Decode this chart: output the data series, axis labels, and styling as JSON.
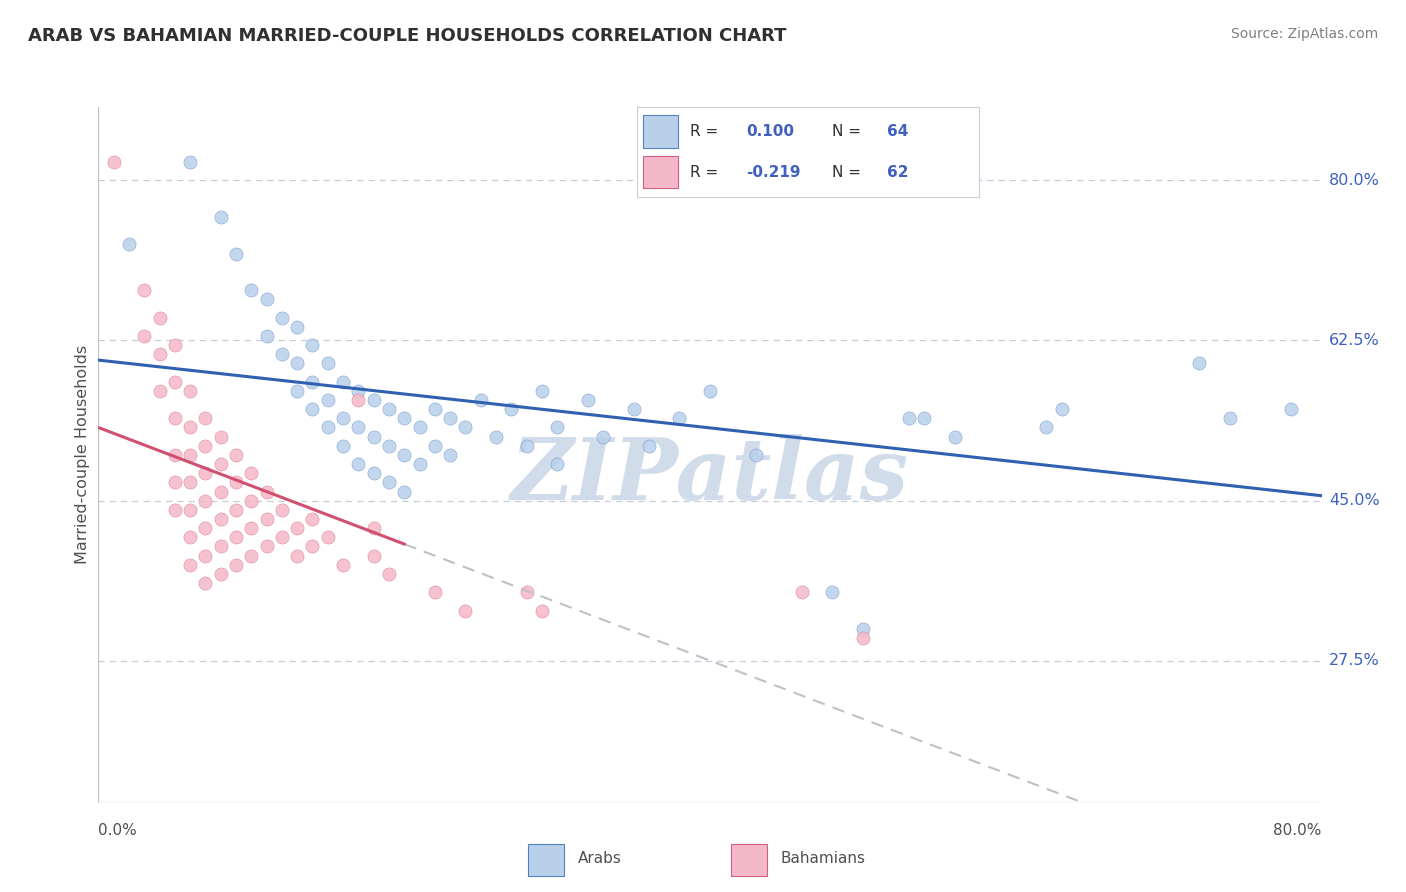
{
  "title": "ARAB VS BAHAMIAN MARRIED-COUPLE HOUSEHOLDS CORRELATION CHART",
  "source": "Source: ZipAtlas.com",
  "ylabel": "Married-couple Households",
  "xlim": [
    0.0,
    0.8
  ],
  "ylim": [
    0.12,
    0.88
  ],
  "yticks": [
    0.275,
    0.45,
    0.625,
    0.8
  ],
  "ytick_labels": [
    "27.5%",
    "45.0%",
    "62.5%",
    "80.0%"
  ],
  "legend_r_arab": "0.100",
  "legend_n_arab": "64",
  "legend_r_bah": "-0.219",
  "legend_n_bah": "62",
  "arab_color": "#b8d0ea",
  "bah_color": "#f5b8c8",
  "arab_edge_color": "#5580c0",
  "bah_edge_color": "#d06080",
  "arab_line_color": "#3060b0",
  "bah_line_color": "#d05070",
  "dash_color": "#c0c0c8",
  "watermark": "ZIPatlas",
  "watermark_color": "#d0dcea",
  "background_color": "#ffffff",
  "title_color": "#303030",
  "source_color": "#808080",
  "legend_val_color": "#4060c0",
  "grid_color": "#c8ccd8",
  "border_color": "#c0c4cc",
  "arab_scatter": [
    [
      0.02,
      0.73
    ],
    [
      0.06,
      0.82
    ],
    [
      0.08,
      0.76
    ],
    [
      0.09,
      0.72
    ],
    [
      0.1,
      0.68
    ],
    [
      0.11,
      0.67
    ],
    [
      0.11,
      0.63
    ],
    [
      0.12,
      0.65
    ],
    [
      0.12,
      0.61
    ],
    [
      0.13,
      0.64
    ],
    [
      0.13,
      0.6
    ],
    [
      0.13,
      0.57
    ],
    [
      0.14,
      0.62
    ],
    [
      0.14,
      0.58
    ],
    [
      0.14,
      0.55
    ],
    [
      0.15,
      0.6
    ],
    [
      0.15,
      0.56
    ],
    [
      0.15,
      0.53
    ],
    [
      0.16,
      0.58
    ],
    [
      0.16,
      0.54
    ],
    [
      0.16,
      0.51
    ],
    [
      0.17,
      0.57
    ],
    [
      0.17,
      0.53
    ],
    [
      0.17,
      0.49
    ],
    [
      0.18,
      0.56
    ],
    [
      0.18,
      0.52
    ],
    [
      0.18,
      0.48
    ],
    [
      0.19,
      0.55
    ],
    [
      0.19,
      0.51
    ],
    [
      0.19,
      0.47
    ],
    [
      0.2,
      0.54
    ],
    [
      0.2,
      0.5
    ],
    [
      0.2,
      0.46
    ],
    [
      0.21,
      0.53
    ],
    [
      0.21,
      0.49
    ],
    [
      0.22,
      0.55
    ],
    [
      0.22,
      0.51
    ],
    [
      0.23,
      0.54
    ],
    [
      0.23,
      0.5
    ],
    [
      0.24,
      0.53
    ],
    [
      0.25,
      0.56
    ],
    [
      0.26,
      0.52
    ],
    [
      0.27,
      0.55
    ],
    [
      0.28,
      0.51
    ],
    [
      0.29,
      0.57
    ],
    [
      0.3,
      0.53
    ],
    [
      0.3,
      0.49
    ],
    [
      0.32,
      0.56
    ],
    [
      0.33,
      0.52
    ],
    [
      0.35,
      0.55
    ],
    [
      0.36,
      0.51
    ],
    [
      0.38,
      0.54
    ],
    [
      0.4,
      0.57
    ],
    [
      0.43,
      0.5
    ],
    [
      0.48,
      0.35
    ],
    [
      0.5,
      0.31
    ],
    [
      0.53,
      0.54
    ],
    [
      0.54,
      0.54
    ],
    [
      0.56,
      0.52
    ],
    [
      0.62,
      0.53
    ],
    [
      0.63,
      0.55
    ],
    [
      0.72,
      0.6
    ],
    [
      0.74,
      0.54
    ],
    [
      0.78,
      0.55
    ]
  ],
  "bah_scatter": [
    [
      0.01,
      0.82
    ],
    [
      0.03,
      0.68
    ],
    [
      0.03,
      0.63
    ],
    [
      0.04,
      0.65
    ],
    [
      0.04,
      0.61
    ],
    [
      0.04,
      0.57
    ],
    [
      0.05,
      0.62
    ],
    [
      0.05,
      0.58
    ],
    [
      0.05,
      0.54
    ],
    [
      0.05,
      0.5
    ],
    [
      0.05,
      0.47
    ],
    [
      0.05,
      0.44
    ],
    [
      0.06,
      0.57
    ],
    [
      0.06,
      0.53
    ],
    [
      0.06,
      0.5
    ],
    [
      0.06,
      0.47
    ],
    [
      0.06,
      0.44
    ],
    [
      0.06,
      0.41
    ],
    [
      0.06,
      0.38
    ],
    [
      0.07,
      0.54
    ],
    [
      0.07,
      0.51
    ],
    [
      0.07,
      0.48
    ],
    [
      0.07,
      0.45
    ],
    [
      0.07,
      0.42
    ],
    [
      0.07,
      0.39
    ],
    [
      0.07,
      0.36
    ],
    [
      0.08,
      0.52
    ],
    [
      0.08,
      0.49
    ],
    [
      0.08,
      0.46
    ],
    [
      0.08,
      0.43
    ],
    [
      0.08,
      0.4
    ],
    [
      0.08,
      0.37
    ],
    [
      0.09,
      0.5
    ],
    [
      0.09,
      0.47
    ],
    [
      0.09,
      0.44
    ],
    [
      0.09,
      0.41
    ],
    [
      0.09,
      0.38
    ],
    [
      0.1,
      0.48
    ],
    [
      0.1,
      0.45
    ],
    [
      0.1,
      0.42
    ],
    [
      0.1,
      0.39
    ],
    [
      0.11,
      0.46
    ],
    [
      0.11,
      0.43
    ],
    [
      0.11,
      0.4
    ],
    [
      0.12,
      0.44
    ],
    [
      0.12,
      0.41
    ],
    [
      0.13,
      0.42
    ],
    [
      0.13,
      0.39
    ],
    [
      0.14,
      0.43
    ],
    [
      0.14,
      0.4
    ],
    [
      0.15,
      0.41
    ],
    [
      0.16,
      0.38
    ],
    [
      0.17,
      0.56
    ],
    [
      0.18,
      0.42
    ],
    [
      0.18,
      0.39
    ],
    [
      0.19,
      0.37
    ],
    [
      0.22,
      0.35
    ],
    [
      0.24,
      0.33
    ],
    [
      0.28,
      0.35
    ],
    [
      0.29,
      0.33
    ],
    [
      0.46,
      0.35
    ],
    [
      0.5,
      0.3
    ]
  ]
}
